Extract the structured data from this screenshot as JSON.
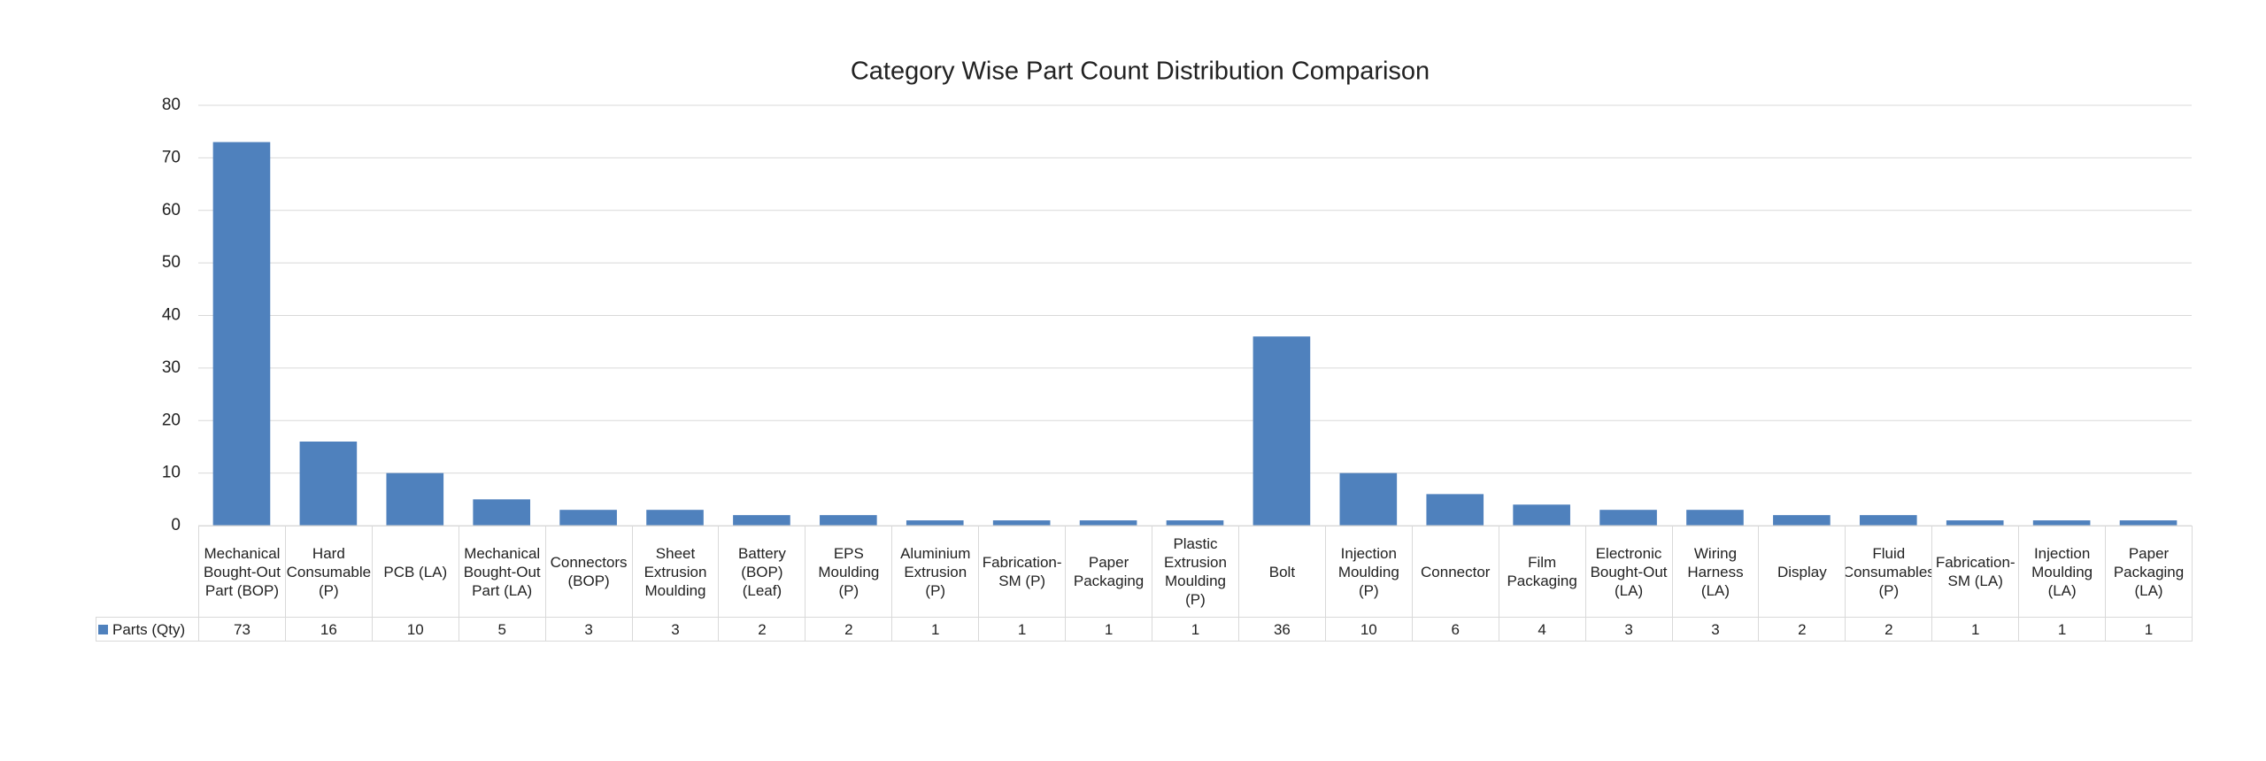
{
  "chart_data": {
    "type": "bar",
    "title": "Category Wise Part Count Distribution Comparison",
    "categories": [
      "Mechanical Bought-Out Part (BOP)",
      "Hard Consumable (P)",
      "PCB (LA)",
      "Mechanical Bought-Out Part (LA)",
      "Connectors (BOP)",
      "Sheet Extrusion Moulding",
      "Battery (BOP) (Leaf)",
      "EPS Moulding (P)",
      "Aluminium Extrusion (P)",
      "Fabrication-SM (P)",
      "Paper Packaging",
      "Plastic Extrusion Moulding (P)",
      "Bolt",
      "Injection Moulding (P)",
      "Connector",
      "Film Packaging",
      "Electronic Bought-Out (LA)",
      "Wiring Harness (LA)",
      "Display",
      "Fluid Consumables (P)",
      "Fabrication-SM (LA)",
      "Injection Moulding (LA)",
      "Paper Packaging (LA)"
    ],
    "series": [
      {
        "name": "Parts (Qty)",
        "color": "#4f81bd",
        "values": [
          73,
          16,
          10,
          5,
          3,
          3,
          2,
          2,
          1,
          1,
          1,
          1,
          36,
          10,
          6,
          4,
          3,
          3,
          2,
          2,
          1,
          1,
          1
        ]
      }
    ],
    "ylim": [
      0,
      80
    ],
    "yticks": [
      0,
      10,
      20,
      30,
      40,
      50,
      60,
      70,
      80
    ],
    "grid": true,
    "data_table": true
  }
}
